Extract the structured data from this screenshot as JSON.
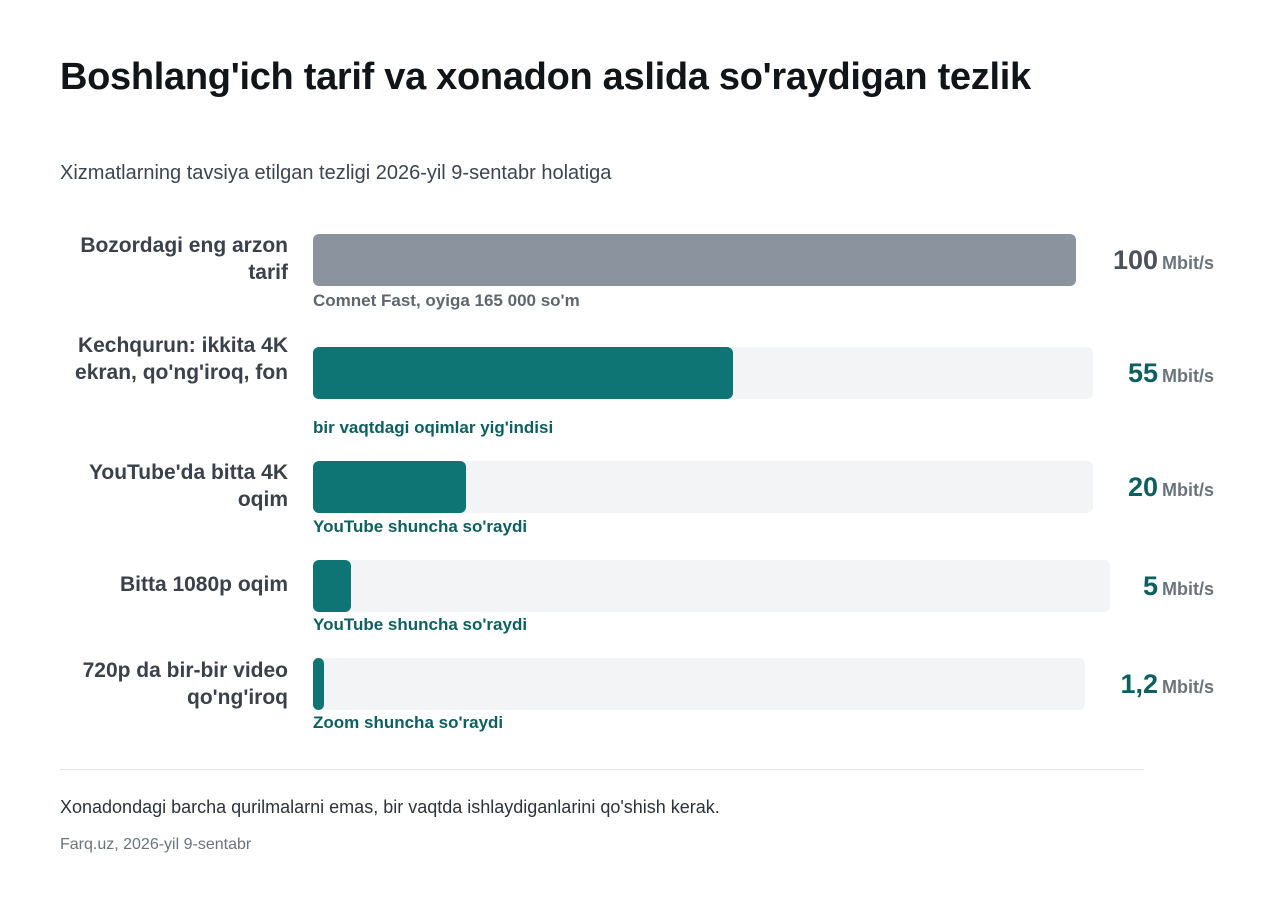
{
  "title": "Boshlang'ich tarif va xonadon aslida so'raydigan tezlik",
  "subtitle": "Xizmatlarning tavsiya etilgan tezligi 2026-yil 9-sentabr holatiga",
  "colors": {
    "reference_bar": "#8a939e",
    "accent_bar": "#0f7474",
    "accent_text": "#0d5f60",
    "reference_text": "#5f666e"
  },
  "chart_data": {
    "type": "bar",
    "orientation": "horizontal",
    "unit": "Mbit/s",
    "categories": [
      "Bozordagi eng arzon tarif",
      "Kechqurun: ikkita 4K ekran, qo'ng'iroq, fon",
      "YouTube'da bitta 4K oqim",
      "Bitta 1080p oqim",
      "720p da bir-bir video qo'ng'iroq"
    ],
    "values": [
      100,
      55,
      20,
      5,
      1.2
    ],
    "value_labels": [
      "100",
      "55",
      "20",
      "5",
      "1,2"
    ],
    "notes": [
      "Comnet Fast, oyiga 165 000 so'm",
      "bir vaqtdagi oqimlar yig'indisi",
      "YouTube shuncha so'raydi",
      "YouTube shuncha so'raydi",
      "Zoom shuncha so'raydi"
    ],
    "xlim": [
      0,
      100
    ],
    "grid": false
  },
  "footnote": "Xonadondagi barcha qurilmalarni emas, bir vaqtda ishlaydiganlarini qo'shish kerak.",
  "source": "Farq.uz, 2026-yil 9-sentabr"
}
